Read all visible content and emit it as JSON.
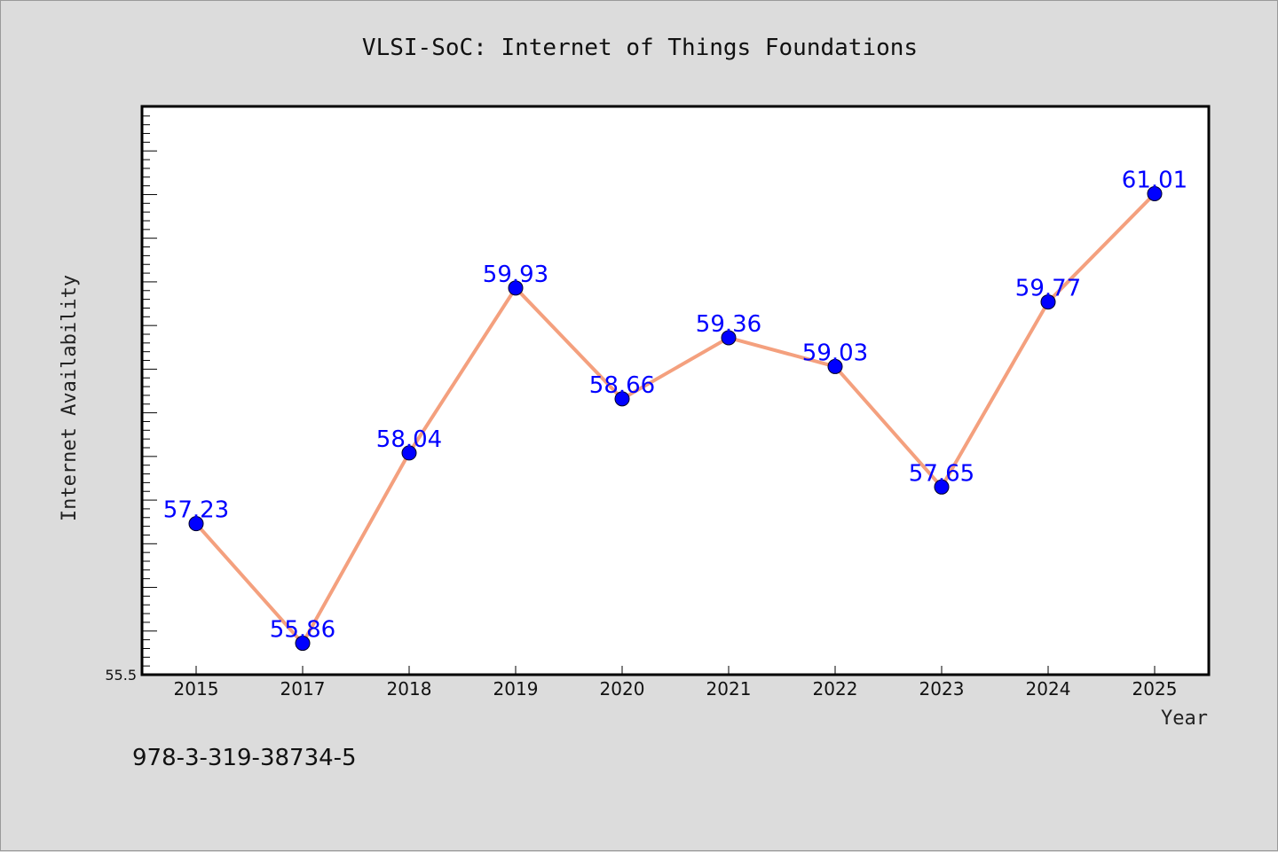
{
  "chart_data": {
    "type": "line",
    "title": "VLSI-SoC: Internet of Things Foundations",
    "xlabel": "Year",
    "ylabel": "Internet Availability",
    "categories": [
      "2015",
      "2017",
      "2018",
      "2019",
      "2020",
      "2021",
      "2022",
      "2023",
      "2024",
      "2025"
    ],
    "series": [
      {
        "values": [
          57.23,
          55.86,
          58.04,
          59.93,
          58.66,
          59.36,
          59.03,
          57.65,
          59.77,
          61.01
        ],
        "data_labels": [
          "57.23",
          "55.86",
          "58.04",
          "59.93",
          "58.66",
          "59.36",
          "59.03",
          "57.65",
          "59.77",
          "61.01"
        ],
        "line_color": "#f4a07e",
        "marker_color": "#0000ff"
      }
    ],
    "ylim": [
      55.5,
      62.0
    ],
    "y_tick_labels": [
      "55.5"
    ],
    "grid": false,
    "legend": "none"
  },
  "footer": {
    "isbn": "978-3-319-38734-5"
  },
  "colors": {
    "background": "#dcdcdc",
    "plot_background": "#ffffff",
    "line": "#f4a07e",
    "marker": "#0000ff",
    "label": "#0000ff"
  }
}
